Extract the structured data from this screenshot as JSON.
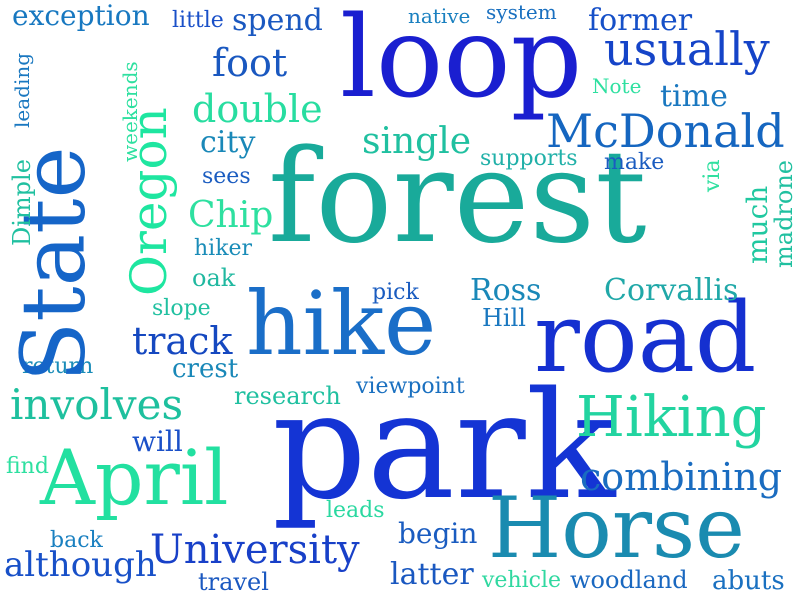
{
  "words": [
    {
      "text": "forest",
      "color": "#19aa9a"
    },
    {
      "text": "park",
      "color": "#1434d4"
    },
    {
      "text": "loop",
      "color": "#1a1fd0"
    },
    {
      "text": "State",
      "color": "#1565c8"
    },
    {
      "text": "hike",
      "color": "#1a6ec8"
    },
    {
      "text": "road",
      "color": "#1530d0"
    },
    {
      "text": "Horse",
      "color": "#1a8bb0"
    },
    {
      "text": "April",
      "color": "#22e0a0"
    },
    {
      "text": "Oregon",
      "color": "#1ee6a0"
    },
    {
      "text": "Hiking",
      "color": "#22d4a0"
    },
    {
      "text": "McDonald",
      "color": "#1566c0"
    },
    {
      "text": "usually",
      "color": "#1544c8"
    },
    {
      "text": "University",
      "color": "#1840c8"
    },
    {
      "text": "involves",
      "color": "#1ec09e"
    },
    {
      "text": "combining",
      "color": "#1a6cc0"
    },
    {
      "text": "double",
      "color": "#28dda0"
    },
    {
      "text": "single",
      "color": "#20c0a0"
    },
    {
      "text": "foot",
      "color": "#1a58c0"
    },
    {
      "text": "track",
      "color": "#1548c0"
    },
    {
      "text": "exception",
      "color": "#1878c0"
    },
    {
      "text": "spend",
      "color": "#1a58c0"
    },
    {
      "text": "former",
      "color": "#1650c8"
    },
    {
      "text": "native",
      "color": "#1a80c0"
    },
    {
      "text": "system",
      "color": "#1a70c0"
    },
    {
      "text": "little",
      "color": "#1a50c8"
    },
    {
      "text": "time",
      "color": "#1a78c0"
    },
    {
      "text": "Note",
      "color": "#2ee0a0"
    },
    {
      "text": "city",
      "color": "#1a88b8"
    },
    {
      "text": "supports",
      "color": "#20b0a8"
    },
    {
      "text": "make",
      "color": "#1a5cc0"
    },
    {
      "text": "via",
      "color": "#30e0a0"
    },
    {
      "text": "madrone",
      "color": "#20c0a0"
    },
    {
      "text": "much",
      "color": "#20c8a0"
    },
    {
      "text": "sees",
      "color": "#1a5cc0"
    },
    {
      "text": "Chip",
      "color": "#2ee0a0"
    },
    {
      "text": "hiker",
      "color": "#1a8cb8"
    },
    {
      "text": "oak",
      "color": "#20b8a0"
    },
    {
      "text": "slope",
      "color": "#20c0a0"
    },
    {
      "text": "pick",
      "color": "#1a5cc0"
    },
    {
      "text": "Ross",
      "color": "#1a88b8"
    },
    {
      "text": "Corvallis",
      "color": "#20a8a8"
    },
    {
      "text": "Hill",
      "color": "#1a78c0"
    },
    {
      "text": "return",
      "color": "#1a8cb8"
    },
    {
      "text": "crest",
      "color": "#1a88b8"
    },
    {
      "text": "research",
      "color": "#20c0a0"
    },
    {
      "text": "viewpoint",
      "color": "#1a70c0"
    },
    {
      "text": "will",
      "color": "#1a50c8"
    },
    {
      "text": "find",
      "color": "#2ee0a0"
    },
    {
      "text": "leads",
      "color": "#2ad8a0"
    },
    {
      "text": "begin",
      "color": "#1a5cc0"
    },
    {
      "text": "back",
      "color": "#1a80c0"
    },
    {
      "text": "although",
      "color": "#1850c8"
    },
    {
      "text": "travel",
      "color": "#1a58c0"
    },
    {
      "text": "latter",
      "color": "#1a58c0"
    },
    {
      "text": "vehicle",
      "color": "#30d8a0"
    },
    {
      "text": "woodland",
      "color": "#1a68c0"
    },
    {
      "text": "abuts",
      "color": "#1a70c0"
    },
    {
      "text": "leading",
      "color": "#1a78c0"
    },
    {
      "text": "weekends",
      "color": "#2ee0a0"
    },
    {
      "text": "Dimple",
      "color": "#20c0a0"
    }
  ]
}
